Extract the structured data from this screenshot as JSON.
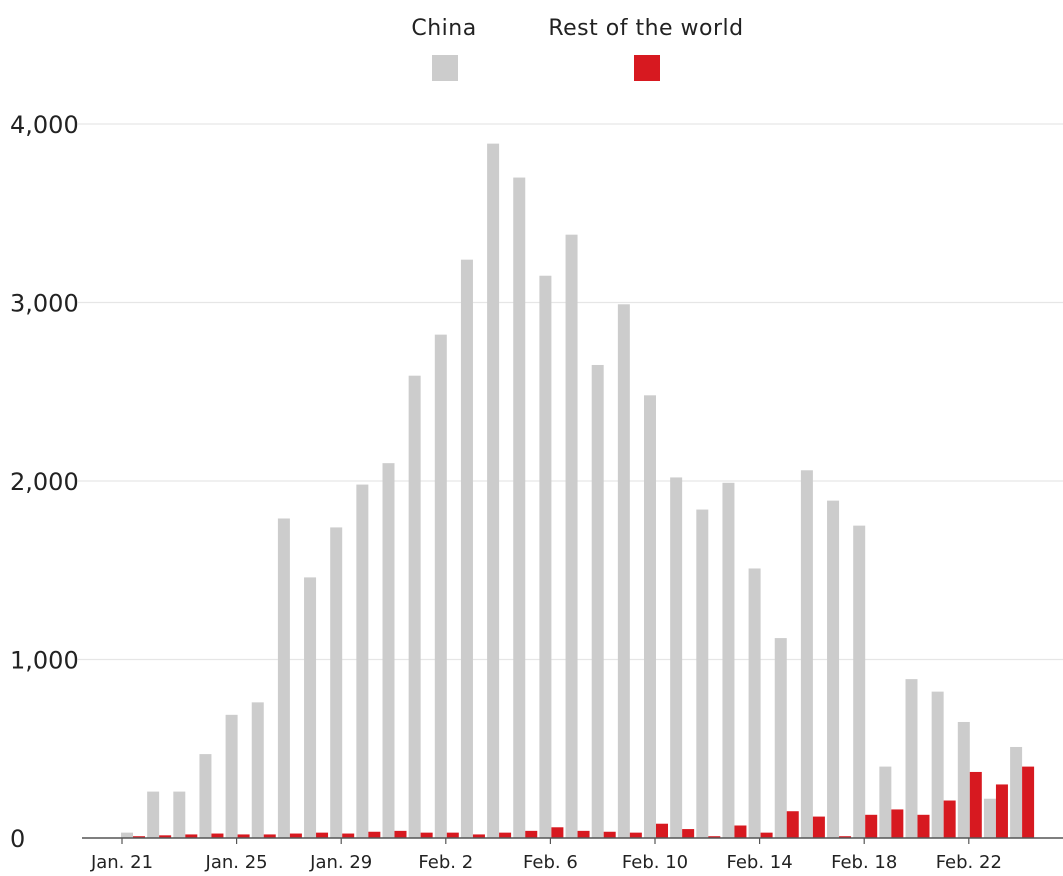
{
  "chart_data": {
    "type": "bar",
    "categories": [
      "Jan. 21",
      "Jan. 22",
      "Jan. 23",
      "Jan. 24",
      "Jan. 25",
      "Jan. 26",
      "Jan. 27",
      "Jan. 28",
      "Jan. 29",
      "Jan. 30",
      "Jan. 31",
      "Feb. 1",
      "Feb. 2",
      "Feb. 3",
      "Feb. 4",
      "Feb. 5",
      "Feb. 6",
      "Feb. 7",
      "Feb. 8",
      "Feb. 9",
      "Feb. 10",
      "Feb. 11",
      "Feb. 12",
      "Feb. 13",
      "Feb. 14",
      "Feb. 15",
      "Feb. 16",
      "Feb. 17",
      "Feb. 18",
      "Feb. 19",
      "Feb. 20",
      "Feb. 21",
      "Feb. 22",
      "Feb. 23",
      "Feb. 24",
      "Feb. 25"
    ],
    "x_tick_labels": [
      "Jan. 21",
      "Jan. 25",
      "Jan. 29",
      "Feb. 2",
      "Feb. 6",
      "Feb. 10",
      "Feb. 14",
      "Feb. 18",
      "Feb. 22"
    ],
    "series": [
      {
        "name": "China",
        "color": "#cccccc",
        "values": [
          30,
          260,
          260,
          470,
          690,
          760,
          1790,
          1460,
          1740,
          1980,
          2100,
          2590,
          2820,
          3240,
          3890,
          3700,
          3150,
          3380,
          2650,
          2990,
          2480,
          2020,
          1840,
          1990,
          1510,
          1120,
          2060,
          1890,
          1750,
          400,
          890,
          820,
          650,
          220,
          510,
          0
        ]
      },
      {
        "name": "Rest of the world",
        "color": "#d71920",
        "values": [
          10,
          15,
          20,
          25,
          20,
          20,
          25,
          30,
          25,
          35,
          40,
          30,
          30,
          20,
          30,
          40,
          60,
          40,
          35,
          30,
          80,
          50,
          10,
          70,
          30,
          150,
          120,
          10,
          130,
          160,
          130,
          210,
          370,
          300,
          400,
          0
        ]
      }
    ],
    "ylim": [
      0,
      4000
    ],
    "yticks": [
      0,
      1000,
      2000,
      3000,
      4000
    ],
    "ytick_labels": [
      "0",
      "1,000",
      "2,000",
      "3,000",
      "4,000"
    ],
    "grid": true,
    "legend_position": "top-center"
  }
}
